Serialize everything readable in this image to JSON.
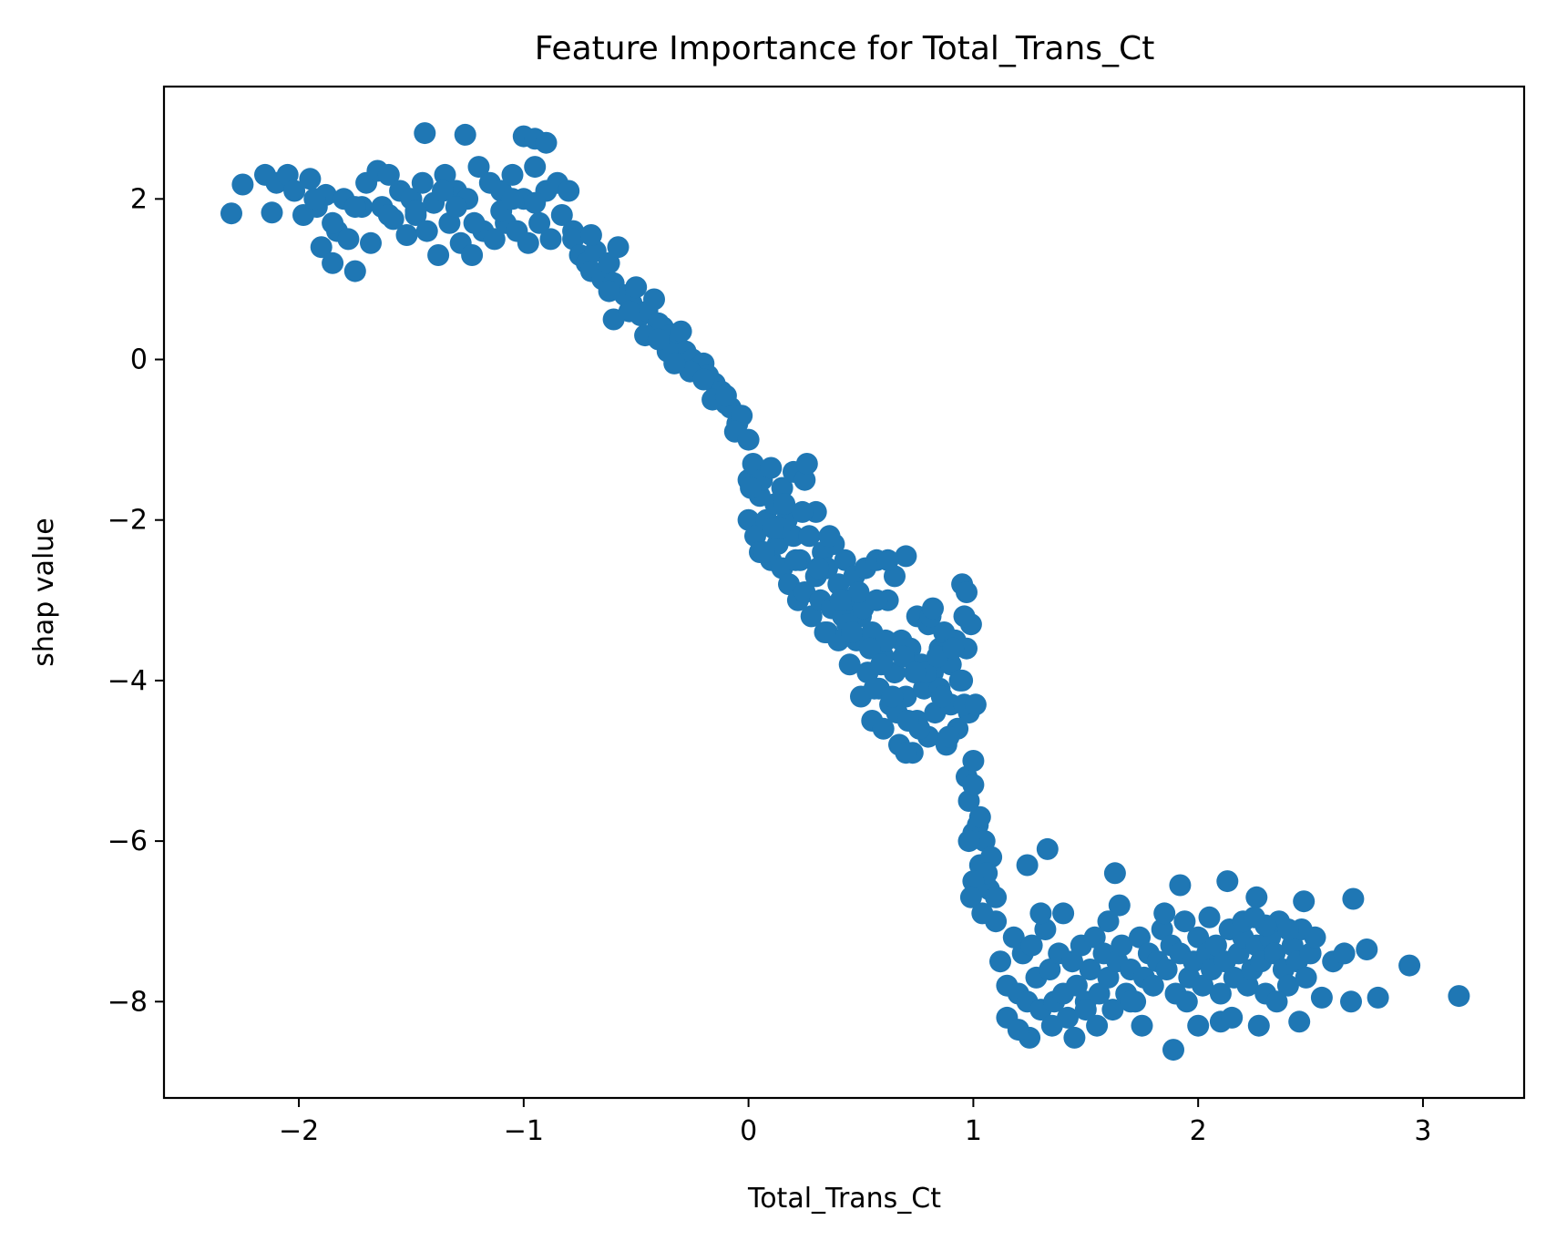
{
  "chart_data": {
    "type": "scatter",
    "title": "Feature Importance for Total_Trans_Ct",
    "xlabel": "Total_Trans_Ct",
    "ylabel": "shap value",
    "xlim": [
      -2.6,
      3.45
    ],
    "ylim": [
      -9.2,
      3.4
    ],
    "xticks": [
      -2,
      -1,
      0,
      1,
      2,
      3
    ],
    "xtick_labels": [
      "−2",
      "−1",
      "0",
      "1",
      "2",
      "3"
    ],
    "yticks": [
      2,
      0,
      -2,
      -4,
      -6,
      -8
    ],
    "ytick_labels": [
      "2",
      "0",
      "−2",
      "−4",
      "−6",
      "−8"
    ],
    "grid": false,
    "color": "#1f77b4",
    "series": [
      {
        "x": [
          -2.3,
          -2.25,
          -2.15,
          -2.12,
          -2.1,
          -2.05,
          -2.02,
          -1.98,
          -1.95,
          -1.92,
          -1.9,
          -1.88,
          -1.85,
          -1.83,
          -1.8,
          -1.78,
          -1.75,
          -1.72,
          -1.7,
          -1.68,
          -1.65,
          -1.63,
          -1.6,
          -1.58,
          -1.55,
          -1.52,
          -1.5,
          -1.48,
          -1.45,
          -1.43,
          -1.4,
          -1.38,
          -1.35,
          -1.33,
          -1.3,
          -1.28,
          -1.25,
          -1.23,
          -1.2,
          -1.18,
          -1.15,
          -1.13,
          -1.1,
          -1.08,
          -1.05,
          -1.03,
          -1.0,
          -0.98,
          -0.95,
          -0.93,
          -0.9,
          -0.88,
          -0.85,
          -0.83,
          -0.8,
          -0.78,
          -1.44,
          -1.26,
          -1.0,
          -0.95,
          -0.9,
          -1.75,
          -1.85,
          -1.93,
          -1.6,
          -1.3,
          -1.1,
          -0.95,
          -1.36,
          -1.22,
          -1.48,
          -1.05,
          -0.78,
          -0.75,
          -0.72,
          -0.7,
          -0.68,
          -0.65,
          -0.62,
          -0.6,
          -0.58,
          -0.55,
          -0.52,
          -0.5,
          -0.48,
          -0.45,
          -0.42,
          -0.4,
          -0.38,
          -0.35,
          -0.32,
          -0.3,
          -0.28,
          -0.25,
          -0.22,
          -0.2,
          -0.18,
          -0.15,
          -0.12,
          -0.1,
          -0.08,
          -0.05,
          -0.03,
          -0.6,
          -0.53,
          -0.46,
          -0.36,
          -0.26,
          -0.16,
          -0.06,
          -0.7,
          -0.62,
          -0.4,
          -0.33,
          -0.2,
          -0.1,
          0.0,
          0.0,
          0.0,
          0.02,
          0.03,
          0.05,
          0.05,
          0.06,
          0.08,
          0.1,
          0.1,
          0.12,
          0.13,
          0.15,
          0.15,
          0.17,
          0.18,
          0.2,
          0.2,
          0.22,
          0.23,
          0.25,
          0.25,
          0.27,
          0.28,
          0.3,
          0.3,
          0.32,
          0.33,
          0.35,
          0.35,
          0.37,
          0.38,
          0.4,
          0.4,
          0.42,
          0.43,
          0.45,
          0.45,
          0.47,
          0.48,
          0.5,
          0.5,
          0.52,
          0.53,
          0.55,
          0.55,
          0.57,
          0.58,
          0.6,
          0.6,
          0.62,
          0.63,
          0.65,
          0.65,
          0.67,
          0.68,
          0.7,
          0.7,
          0.72,
          0.73,
          0.75,
          0.75,
          0.77,
          0.78,
          0.8,
          0.8,
          0.82,
          0.83,
          0.85,
          0.85,
          0.87,
          0.88,
          0.9,
          0.9,
          0.92,
          0.93,
          0.95,
          0.95,
          0.97,
          0.97,
          0.98,
          0.99,
          0.01,
          0.07,
          0.14,
          0.24,
          0.31,
          0.44,
          0.51,
          0.61,
          0.69,
          0.79,
          0.86,
          0.94,
          0.26,
          0.36,
          0.46,
          0.56,
          0.66,
          0.76,
          0.84,
          0.54,
          0.64,
          0.74,
          0.49,
          0.59,
          0.71,
          0.81,
          0.89,
          0.91,
          0.96,
          0.11,
          0.21,
          0.16,
          0.34,
          0.41,
          0.96,
          0.7,
          0.57,
          0.62,
          0.82,
          0.97,
          0.98,
          1.0,
          1.0,
          1.02,
          1.03,
          1.05,
          1.05,
          1.07,
          1.08,
          1.1,
          1.1,
          0.98,
          1.0,
          1.03,
          1.06,
          1.0,
          0.99,
          1.04,
          1.01,
          1.12,
          1.15,
          1.18,
          1.2,
          1.22,
          1.24,
          1.26,
          1.28,
          1.3,
          1.32,
          1.34,
          1.36,
          1.38,
          1.4,
          1.42,
          1.44,
          1.46,
          1.48,
          1.5,
          1.52,
          1.54,
          1.56,
          1.58,
          1.6,
          1.62,
          1.64,
          1.66,
          1.68,
          1.7,
          1.72,
          1.74,
          1.76,
          1.78,
          1.8,
          1.82,
          1.84,
          1.86,
          1.88,
          1.9,
          1.92,
          1.94,
          1.96,
          1.98,
          2.0,
          2.02,
          2.04,
          2.06,
          2.08,
          2.1,
          2.12,
          2.14,
          2.16,
          2.18,
          2.2,
          2.22,
          2.24,
          2.26,
          2.28,
          2.3,
          2.32,
          2.34,
          2.36,
          2.38,
          2.4,
          2.42,
          2.44,
          2.46,
          2.48,
          2.5,
          2.52,
          1.24,
          1.33,
          1.63,
          1.92,
          2.13,
          2.26,
          2.47,
          2.69,
          1.25,
          1.45,
          1.89,
          2.1,
          2.27,
          2.55,
          2.68,
          2.8,
          2.94,
          3.16,
          2.6,
          2.65,
          2.75,
          1.15,
          1.35,
          1.55,
          1.75,
          1.95,
          2.15,
          2.35,
          2.45,
          1.2,
          1.5,
          1.7,
          2.0,
          2.2,
          2.4,
          1.3,
          1.65,
          2.05,
          2.3,
          1.4,
          1.85,
          2.25,
          1.6
        ],
        "y": [
          1.82,
          2.18,
          2.3,
          1.83,
          2.2,
          2.3,
          2.1,
          1.8,
          2.25,
          1.9,
          1.4,
          2.05,
          1.2,
          1.6,
          2.0,
          1.5,
          1.1,
          1.9,
          2.2,
          1.45,
          2.35,
          1.9,
          2.3,
          1.75,
          2.1,
          1.55,
          2.0,
          1.8,
          2.2,
          1.6,
          1.95,
          1.3,
          2.3,
          1.7,
          2.1,
          1.45,
          2.0,
          1.3,
          2.4,
          1.6,
          2.2,
          1.5,
          2.1,
          1.7,
          2.3,
          1.6,
          2.0,
          1.45,
          2.4,
          1.7,
          2.1,
          1.5,
          2.2,
          1.8,
          2.1,
          1.6,
          2.82,
          2.8,
          2.78,
          2.75,
          2.7,
          1.9,
          1.7,
          2.0,
          1.8,
          1.9,
          1.85,
          1.95,
          2.1,
          1.7,
          1.85,
          2.0,
          1.5,
          1.3,
          1.2,
          1.1,
          1.35,
          1.0,
          1.2,
          0.95,
          1.4,
          0.8,
          0.7,
          0.9,
          0.55,
          0.6,
          0.75,
          0.45,
          0.4,
          0.3,
          0.2,
          0.35,
          0.1,
          0.0,
          -0.1,
          -0.05,
          -0.2,
          -0.3,
          -0.4,
          -0.55,
          -0.6,
          -0.8,
          -0.7,
          0.5,
          0.6,
          0.3,
          0.1,
          -0.15,
          -0.5,
          -0.9,
          1.55,
          0.85,
          0.25,
          -0.05,
          -0.25,
          -0.45,
          -1.0,
          -1.5,
          -2.0,
          -1.3,
          -2.2,
          -1.7,
          -2.4,
          -1.5,
          -2.0,
          -1.35,
          -2.5,
          -1.8,
          -2.3,
          -1.6,
          -2.6,
          -2.0,
          -2.8,
          -1.4,
          -2.2,
          -3.0,
          -2.5,
          -1.5,
          -2.9,
          -2.2,
          -3.2,
          -1.9,
          -2.7,
          -3.0,
          -2.4,
          -3.4,
          -2.6,
          -3.1,
          -2.3,
          -3.5,
          -2.8,
          -3.2,
          -2.5,
          -3.8,
          -3.0,
          -2.7,
          -3.5,
          -4.2,
          -3.2,
          -2.6,
          -3.9,
          -4.5,
          -3.4,
          -2.5,
          -4.1,
          -3.7,
          -4.6,
          -3.0,
          -4.3,
          -2.7,
          -3.9,
          -4.8,
          -3.5,
          -2.45,
          -4.2,
          -3.6,
          -4.9,
          -3.2,
          -4.5,
          -3.8,
          -4.1,
          -3.3,
          -4.7,
          -3.9,
          -4.4,
          -3.6,
          -4.1,
          -3.4,
          -4.8,
          -3.8,
          -4.3,
          -3.5,
          -4.6,
          -2.8,
          -4.0,
          -2.9,
          -3.6,
          -4.4,
          -3.3,
          -1.6,
          -2.4,
          -2.1,
          -1.9,
          -2.6,
          -3.3,
          -3.1,
          -3.5,
          -3.7,
          -3.9,
          -4.2,
          -4.0,
          -1.3,
          -2.2,
          -3.4,
          -4.1,
          -4.4,
          -4.6,
          -3.7,
          -3.6,
          -4.2,
          -3.9,
          -2.9,
          -3.8,
          -4.5,
          -3.2,
          -4.7,
          -3.6,
          -4.3,
          -2.1,
          -2.5,
          -1.8,
          -3.4,
          -3.0,
          -3.2,
          -4.9,
          -3.0,
          -2.5,
          -3.1,
          -5.2,
          -5.5,
          -5.3,
          -5.9,
          -5.8,
          -6.3,
          -6.0,
          -6.5,
          -6.6,
          -6.2,
          -6.7,
          -7.0,
          -6.0,
          -5.0,
          -5.7,
          -6.4,
          -6.5,
          -6.7,
          -6.9,
          -4.3,
          -7.5,
          -7.8,
          -7.2,
          -7.9,
          -7.4,
          -8.0,
          -7.3,
          -7.7,
          -8.1,
          -7.1,
          -7.6,
          -8.0,
          -7.4,
          -7.9,
          -8.2,
          -7.5,
          -7.8,
          -7.3,
          -8.0,
          -7.6,
          -7.2,
          -7.9,
          -7.4,
          -7.7,
          -8.1,
          -7.5,
          -7.3,
          -7.9,
          -7.6,
          -8.0,
          -7.2,
          -7.7,
          -7.4,
          -7.8,
          -7.5,
          -7.1,
          -7.6,
          -7.3,
          -7.9,
          -7.4,
          -7.0,
          -7.7,
          -7.5,
          -7.2,
          -7.8,
          -7.4,
          -7.6,
          -7.3,
          -7.9,
          -7.5,
          -7.1,
          -7.7,
          -7.4,
          -7.2,
          -7.8,
          -7.6,
          -7.3,
          -7.5,
          -7.9,
          -7.2,
          -7.4,
          -7.0,
          -7.6,
          -7.8,
          -7.3,
          -7.5,
          -7.1,
          -7.7,
          -7.4,
          -7.2,
          -6.3,
          -6.1,
          -6.4,
          -6.55,
          -6.5,
          -6.7,
          -6.75,
          -6.72,
          -8.45,
          -8.45,
          -8.6,
          -8.25,
          -8.3,
          -7.95,
          -8.0,
          -7.95,
          -7.55,
          -7.93,
          -7.5,
          -7.4,
          -7.35,
          -8.2,
          -8.3,
          -8.3,
          -8.3,
          -8.0,
          -8.2,
          -8.0,
          -8.25,
          -8.35,
          -8.1,
          -8.0,
          -8.3,
          -7.0,
          -7.1,
          -6.9,
          -6.8,
          -6.95,
          -7.05,
          -6.9,
          -6.9,
          -6.95,
          -7.0
        ]
      }
    ]
  }
}
